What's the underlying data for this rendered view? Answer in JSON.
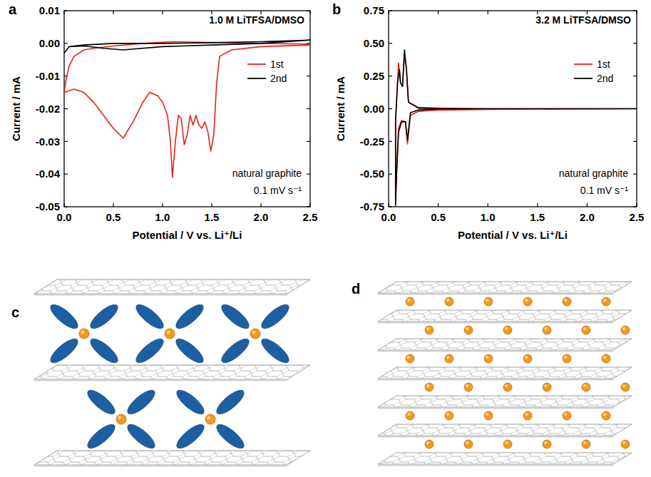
{
  "chart_data": [
    {
      "type": "line",
      "label": "a",
      "title": "1.0 M LiTFSA/DMSO",
      "annotations": [
        "natural graphite",
        "0.1 mV s⁻¹"
      ],
      "x_label": "Potential / V vs. Li⁺/Li",
      "y_label": "Current / mA",
      "xlim": [
        0,
        2.5
      ],
      "xticks": [
        {
          "value": 0,
          "label": "0.0"
        },
        0.5,
        {
          "value": 1,
          "label": "1.0"
        },
        1.5,
        {
          "value": 2,
          "label": "2.0"
        },
        2.5
      ],
      "ylim": [
        -0.05,
        0.01
      ],
      "yticks": [
        -0.05,
        -0.04,
        -0.03,
        -0.02,
        -0.01,
        {
          "value": 0,
          "label": "0.00"
        },
        0.01
      ],
      "legend": "upper right",
      "series": [
        {
          "name": "1st",
          "color": "#e8211d",
          "x": [
            2.5,
            2.0,
            1.7,
            1.58,
            1.55,
            1.52,
            1.49,
            1.46,
            1.43,
            1.4,
            1.37,
            1.34,
            1.31,
            1.28,
            1.25,
            1.22,
            1.19,
            1.16,
            1.13,
            1.1,
            1.08,
            1.05,
            1.0,
            0.95,
            0.87,
            0.8,
            0.7,
            0.6,
            0.5,
            0.4,
            0.3,
            0.2,
            0.1,
            0.0,
            0.02,
            0.05,
            0.1,
            0.2,
            0.3,
            0.5,
            0.8,
            1.1,
            1.5,
            2.0,
            2.5
          ],
          "values": [
            -0.0005,
            -0.001,
            -0.002,
            -0.004,
            -0.012,
            -0.028,
            -0.033,
            -0.027,
            -0.024,
            -0.026,
            -0.025,
            -0.022,
            -0.025,
            -0.022,
            -0.028,
            -0.031,
            -0.023,
            -0.022,
            -0.03,
            -0.041,
            -0.03,
            -0.022,
            -0.018,
            -0.016,
            -0.015,
            -0.018,
            -0.024,
            -0.029,
            -0.026,
            -0.022,
            -0.018,
            -0.015,
            -0.014,
            -0.015,
            -0.011,
            -0.007,
            -0.004,
            -0.002,
            -0.0015,
            -0.0008,
            0,
            0.0005,
            0.0003,
            0,
            -0.0002
          ]
        },
        {
          "name": "2nd",
          "color": "#000000",
          "x": [
            2.5,
            2.0,
            1.5,
            1.0,
            0.6,
            0.4,
            0.2,
            0.05,
            0.0,
            0.05,
            0.2,
            0.5,
            1.0,
            1.5,
            2.0,
            2.5
          ],
          "values": [
            0.001,
            0,
            -0.0005,
            -0.001,
            -0.002,
            -0.0015,
            -0.0008,
            -0.001,
            -0.003,
            -0.001,
            -0.0005,
            0,
            0,
            0.0002,
            0.0005,
            0.001
          ]
        }
      ]
    },
    {
      "type": "line",
      "label": "b",
      "title": "3.2 M LiTFSA/DMSO",
      "annotations": [
        "natural graphite",
        "0.1 mV s⁻¹"
      ],
      "x_label": "Potential / V vs. Li⁺/Li",
      "y_label": "Current / mA",
      "xlim": [
        0,
        2.5
      ],
      "xticks": [
        {
          "value": 0,
          "label": "0.0"
        },
        0.5,
        {
          "value": 1,
          "label": "1.0"
        },
        1.5,
        {
          "value": 2,
          "label": "2.0"
        },
        2.5
      ],
      "ylim": [
        -0.75,
        0.75
      ],
      "yticks": [
        -0.75,
        {
          "value": -0.5,
          "label": "-0.50"
        },
        -0.25,
        {
          "value": 0,
          "label": "0.00"
        },
        0.25,
        {
          "value": 0.5,
          "label": "0.50"
        },
        0.75
      ],
      "legend": "upper right",
      "series": [
        {
          "name": "1st",
          "color": "#e8211d",
          "x": [
            2.5,
            1.0,
            0.5,
            0.4,
            0.3,
            0.22,
            0.19,
            0.17,
            0.13,
            0.1,
            0.08,
            0.07,
            0.07,
            0.09,
            0.1,
            0.12,
            0.14,
            0.16,
            0.18,
            0.2,
            0.3,
            0.5,
            1.0,
            2.5
          ],
          "values": [
            0,
            -0.005,
            -0.01,
            -0.015,
            -0.02,
            -0.05,
            -0.27,
            -0.1,
            -0.09,
            -0.15,
            -0.5,
            -0.7,
            -0.1,
            0.2,
            0.35,
            0.2,
            0.17,
            0.42,
            0.3,
            0.05,
            0.01,
            0.005,
            0,
            0
          ]
        },
        {
          "name": "2nd",
          "color": "#000000",
          "x": [
            2.5,
            1.0,
            0.5,
            0.3,
            0.22,
            0.19,
            0.17,
            0.13,
            0.1,
            0.08,
            0.07,
            0.07,
            0.09,
            0.11,
            0.12,
            0.14,
            0.16,
            0.18,
            0.2,
            0.3,
            0.5,
            2.5
          ],
          "values": [
            0,
            0,
            -0.003,
            -0.01,
            -0.03,
            -0.24,
            -0.1,
            -0.1,
            -0.18,
            -0.5,
            -0.74,
            -0.1,
            0.2,
            0.3,
            0.2,
            0.17,
            0.45,
            0.3,
            0.05,
            0.005,
            0,
            0
          ]
        }
      ]
    }
  ],
  "diagrams": [
    {
      "label": "c"
    },
    {
      "label": "d"
    }
  ]
}
